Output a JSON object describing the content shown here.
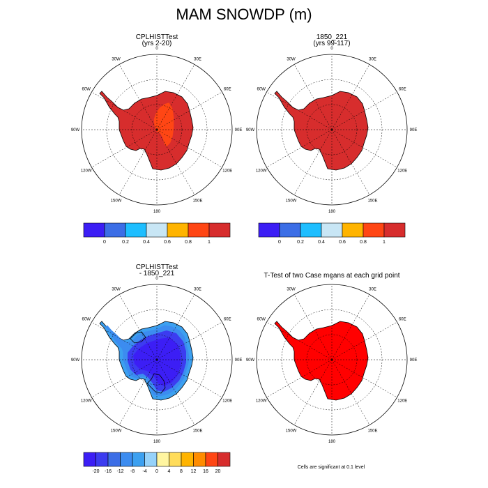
{
  "title": "MAM SNOWDP (m)",
  "panels": [
    {
      "id": "p1",
      "title_lines": [
        "CPLHISTTest",
        "(yrs 2-20)"
      ]
    },
    {
      "id": "p2",
      "title_lines": [
        "1850_221",
        "(yrs 99-117)"
      ]
    },
    {
      "id": "p3",
      "title_lines": [
        "CPLHISTTest",
        "- 1850_221"
      ]
    },
    {
      "id": "p4",
      "title_lines": [
        "T-Test of two Case means at each grid point"
      ]
    }
  ],
  "longitude_labels": [
    "0",
    "30E",
    "60E",
    "90E",
    "120E",
    "150E",
    "180",
    "150W",
    "120W",
    "90W",
    "60W",
    "30W"
  ],
  "colorbar_top": {
    "colors": [
      "#3c1ef5",
      "#3c6ee6",
      "#1ebeff",
      "#c8e6f5",
      "#ffb400",
      "#ff4614",
      "#d72d2d"
    ],
    "tick_labels": [
      "0",
      "0.2",
      "0.4",
      "0.6",
      "0.8",
      "1"
    ]
  },
  "colorbar_diff": {
    "colors": [
      "#3c1ef5",
      "#3c3cf0",
      "#3c6ee6",
      "#3c8cf0",
      "#3ca0f0",
      "#96d2fa",
      "#fff5a0",
      "#ffdc5a",
      "#ffb400",
      "#ff8c00",
      "#ff4614",
      "#d72d2d"
    ],
    "tick_labels": [
      "-20",
      "-16",
      "-12",
      "-8",
      "-4",
      "0",
      "4",
      "8",
      "12",
      "16",
      "20"
    ]
  },
  "map_colors": {
    "p1_fill": "#d72d2d",
    "p1_patch": "#ff4614",
    "p2_fill": "#d72d2d",
    "p3_core": "#3c1ef5",
    "p3_mid": "#3c3cf0",
    "p3_edge": "#3c8cf0",
    "p3_rim": "#3ca0f0",
    "p4_fill": "#ff0000"
  },
  "footnote": "Cells are significant at 0.1 level"
}
